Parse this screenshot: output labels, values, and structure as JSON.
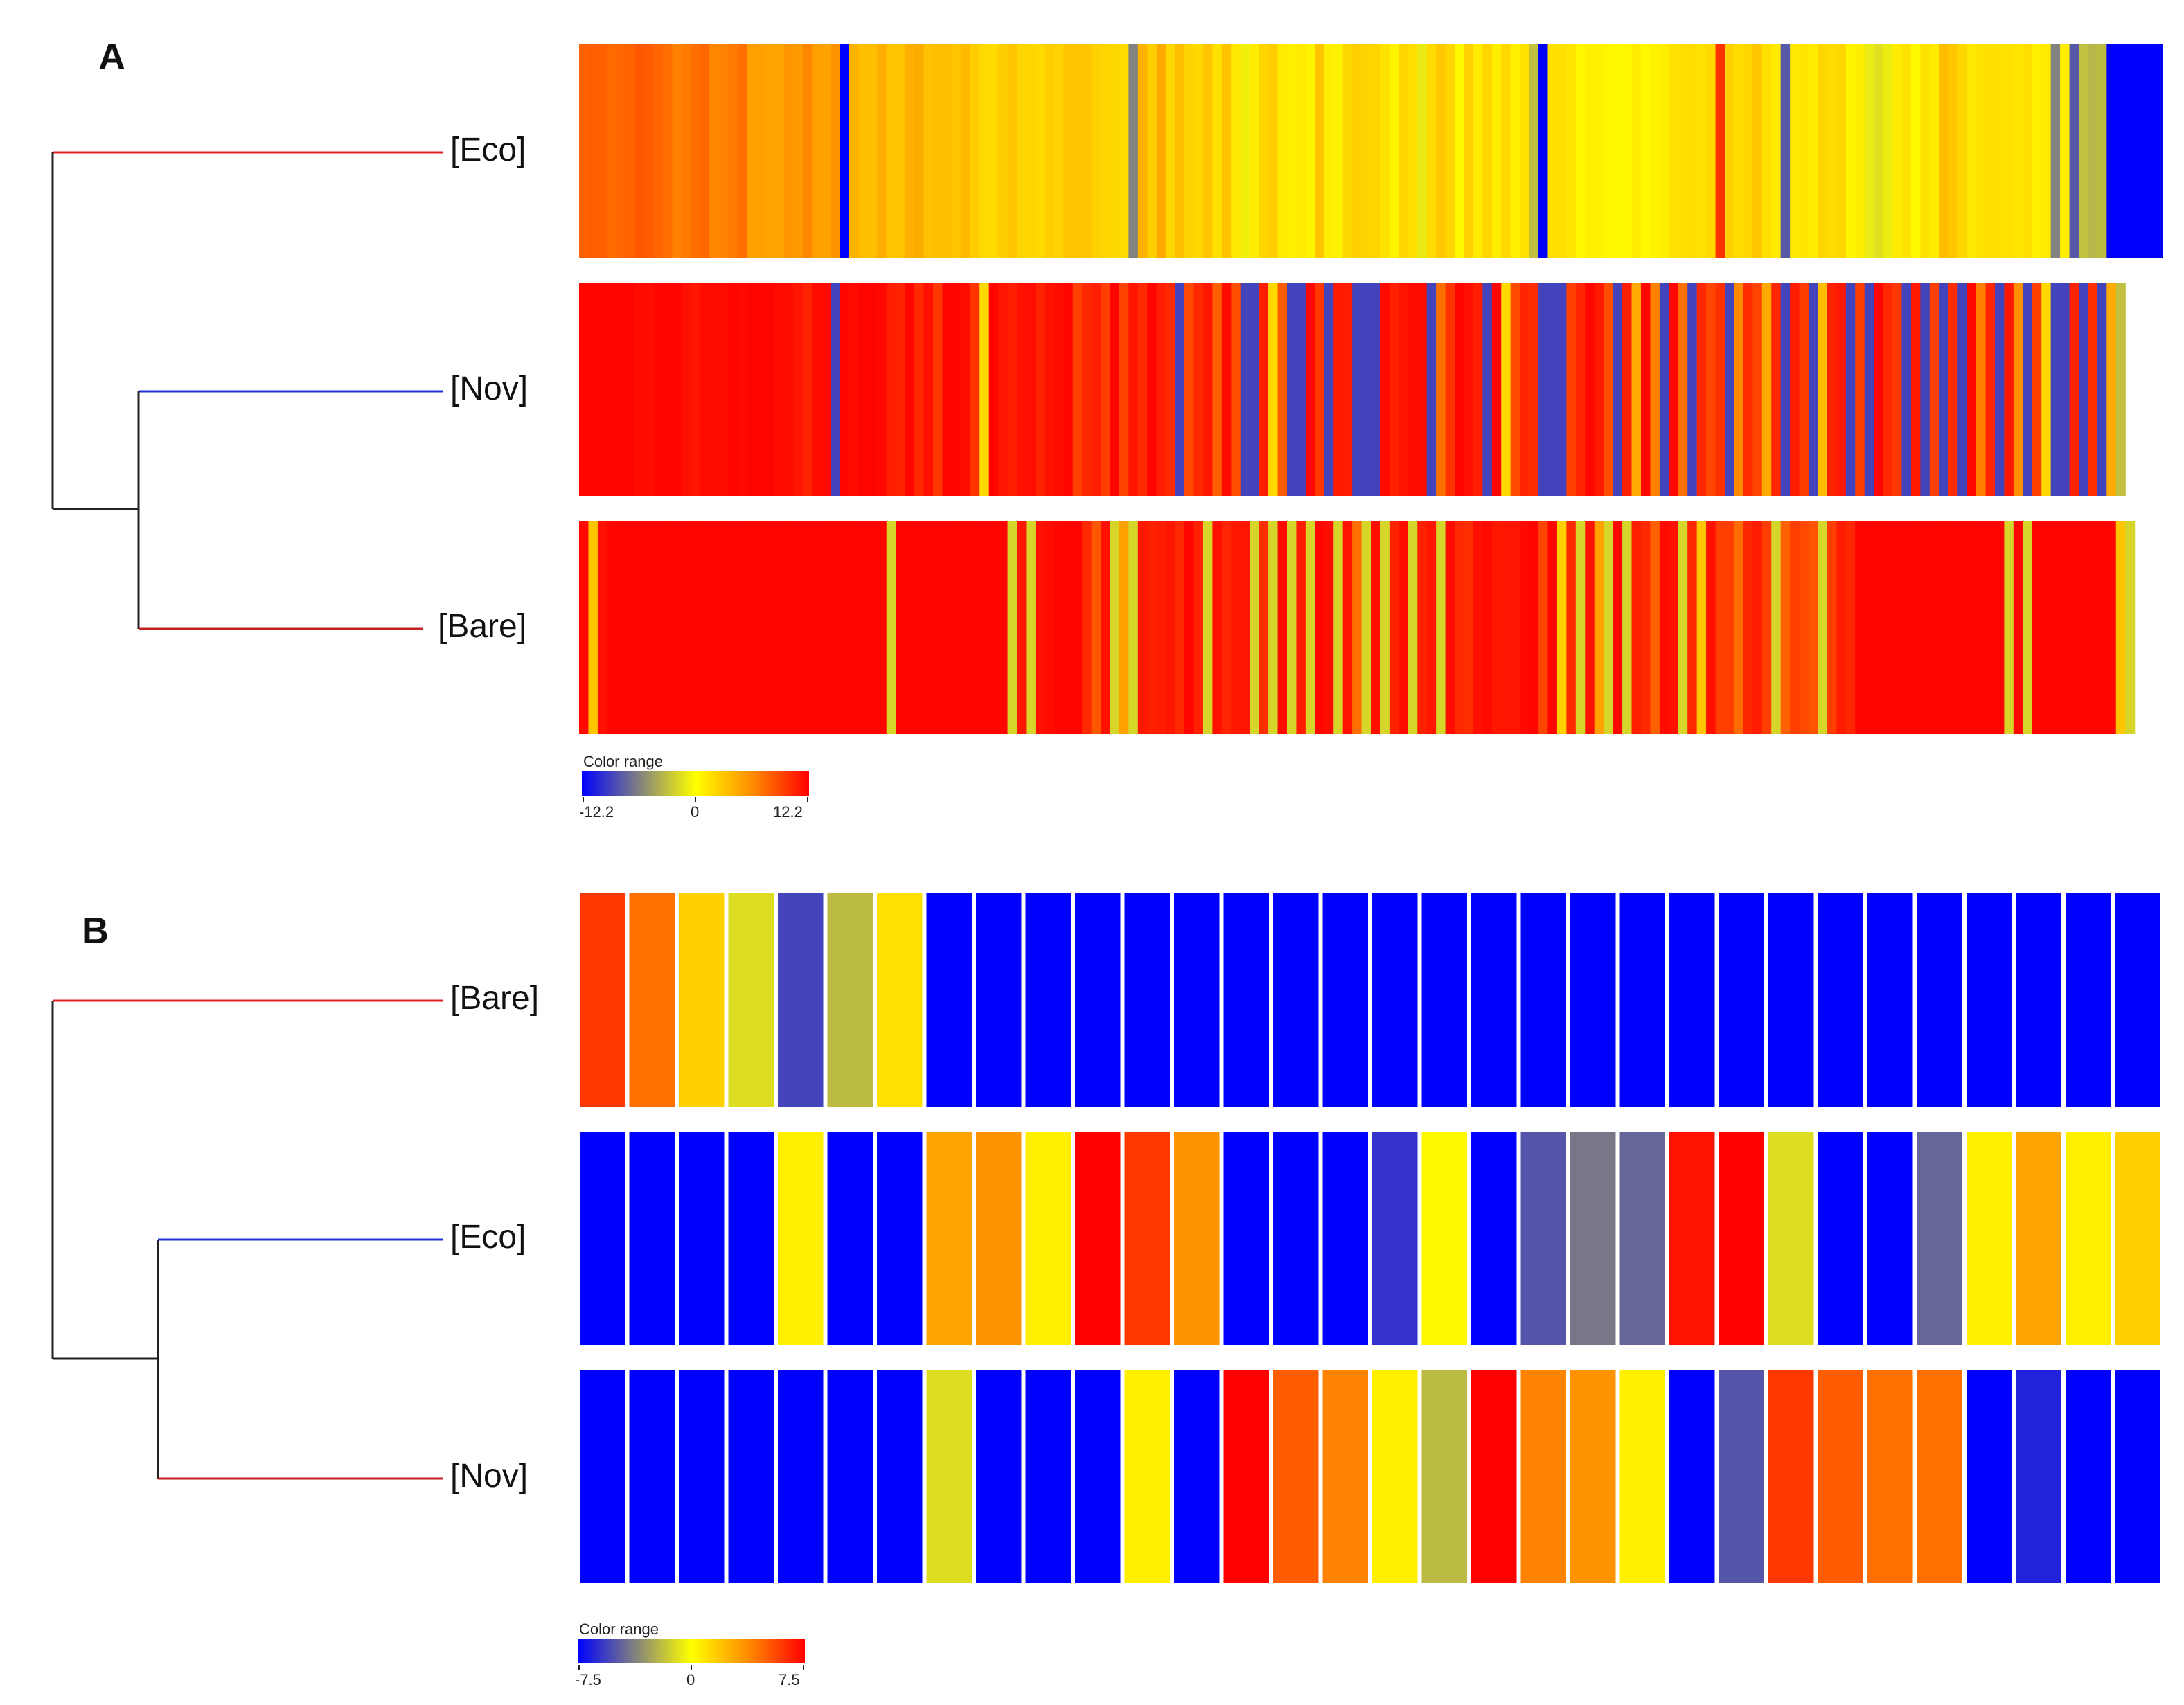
{
  "chart_data": [
    {
      "type": "heatmap",
      "panel_label": "A",
      "rows": [
        "[Eco]",
        "[Nov]",
        "[Bare]"
      ],
      "tree": {
        "root": [
          "[Eco]",
          [
            "[Nov]",
            "[Bare]"
          ]
        ],
        "branch_colors": {
          "[Eco]": "#e02020",
          "[Nov]": "#2030d0",
          "[Bare]": "#c02020"
        }
      },
      "column_count": 166,
      "values": [
        [
          8.0,
          8.1,
          8.0,
          7.6,
          7.8,
          7.9,
          8.4,
          8.2,
          7.8,
          7.4,
          6.5,
          6.9,
          7.4,
          7.7,
          6.3,
          6.5,
          6.8,
          7.3,
          5.1,
          5.1,
          4.9,
          4.9,
          5.6,
          5.3,
          6.3,
          5.1,
          4.9,
          5.7,
          -12.2,
          4.1,
          3.4,
          3.4,
          4.3,
          3.1,
          3.2,
          4.2,
          4.4,
          3.3,
          3.4,
          3.4,
          3.1,
          3.7,
          2.7,
          2.0,
          1.9,
          2.6,
          3.1,
          2.2,
          2.2,
          2.0,
          2.6,
          2.3,
          3.2,
          3.2,
          3.0,
          2.4,
          2.2,
          2.1,
          1.9,
          -6.0,
          4.1,
          2.6,
          4.5,
          2.1,
          3.5,
          2.3,
          2.0,
          3.1,
          1.6,
          3.2,
          1.2,
          -0.7,
          1.0,
          2.2,
          2.6,
          1.1,
          0.8,
          1.1,
          0.6,
          3.0,
          0.9,
          0.7,
          2.1,
          2.5,
          2.3,
          2.2,
          1.5,
          0.6,
          2.2,
          1.7,
          -1.0,
          1.9,
          2.9,
          2.2,
          0.3,
          2.4,
          1.0,
          2.2,
          0.9,
          2.0,
          0.8,
          1.6,
          -3.0,
          -12.2,
          1.6,
          1.7,
          1.3,
          0.5,
          0.8,
          0.7,
          0.5,
          0.3,
          0.4,
          1.0,
          0.3,
          0.7,
          0.9,
          1.6,
          1.7,
          1.8,
          1.6,
          2.0,
          10.0,
          2.5,
          1.8,
          2.2,
          3.0,
          1.7,
          1.1,
          -8.0,
          1.2,
          1.3,
          1.0,
          2.2,
          1.9,
          2.2,
          0.6,
          0.9,
          -1.0,
          -1.5,
          -0.9,
          1.0,
          1.5,
          0.3,
          1.5,
          1.0,
          3.5,
          3.0,
          2.2,
          1.2,
          1.5,
          1.7,
          1.6,
          1.6,
          1.4,
          1.7,
          0.8,
          1.1,
          -6.0,
          1.0,
          -8.0,
          -3.0,
          -3.5,
          -3.2,
          -12.2,
          -12.2,
          -12.2,
          -12.2,
          -12.2,
          -12.2
        ],
        [
          12.0,
          12.0,
          12.0,
          12.0,
          12.0,
          12.0,
          11.7,
          11.6,
          11.9,
          12.0,
          12.0,
          11.5,
          11.3,
          11.6,
          11.6,
          11.6,
          12.0,
          11.8,
          12.0,
          12.0,
          12.0,
          11.7,
          11.6,
          11.3,
          10.7,
          11.7,
          11.8,
          -9.0,
          11.9,
          11.7,
          12.0,
          12.0,
          11.8,
          10.9,
          10.7,
          11.9,
          10.4,
          11.5,
          9.8,
          12.0,
          11.9,
          11.6,
          9.9,
          2.0,
          11.9,
          11.3,
          10.9,
          11.5,
          11.6,
          10.7,
          11.4,
          11.6,
          12.0,
          9.5,
          10.5,
          10.9,
          9.5,
          12.0,
          9.3,
          11.3,
          10.4,
          12.0,
          10.9,
          10.4,
          -9.0,
          9.0,
          10.5,
          11.2,
          8.1,
          11.7,
          8.8,
          -9.0,
          -9.0,
          10.9,
          2.0,
          8.2,
          -9.0,
          -9.0,
          11.8,
          9.8,
          -9.0,
          11.1,
          11.0,
          -9.0,
          -9.0,
          -9.0,
          11.7,
          10.8,
          11.4,
          11.6,
          11.6,
          -9.0,
          7.4,
          9.9,
          12.0,
          11.5,
          10.9,
          -9.0,
          12.0,
          2.0,
          9.0,
          10.6,
          10.3,
          -9.0,
          -9.0,
          -9.0,
          9.5,
          10.6,
          11.9,
          11.1,
          8.8,
          -9.0,
          10.8,
          4.5,
          11.9,
          6.6,
          -9.0,
          11.9,
          7.3,
          -9.0,
          10.4,
          9.2,
          10.1,
          -9.0,
          6.2,
          10.3,
          9.3,
          4.5,
          10.5,
          -9.0,
          11.0,
          9.6,
          -9.0,
          3.5,
          10.7,
          11.1,
          -9.0,
          9.6,
          -9.0,
          12.0,
          10.5,
          9.8,
          -9.0,
          11.1,
          -9.0,
          9.4,
          -9.0,
          10.3,
          -9.0,
          11.8,
          6.6,
          10.6,
          -9.0,
          11.1,
          5.9,
          -9.0,
          9.4,
          2.0,
          -9.0,
          -9.0,
          10.7,
          -9.0,
          10.2,
          -9.0,
          4.5,
          -3.0
        ],
        [
          11.8,
          3.0,
          11.5,
          11.9,
          12.0,
          12.0,
          12.0,
          12.0,
          12.0,
          12.0,
          12.0,
          12.0,
          12.0,
          12.0,
          12.0,
          12.0,
          12.0,
          12.0,
          12.0,
          12.0,
          12.0,
          12.0,
          12.0,
          12.0,
          12.0,
          12.0,
          12.0,
          12.0,
          12.0,
          12.0,
          12.0,
          12.0,
          12.0,
          -2.0,
          12.0,
          12.0,
          12.0,
          12.0,
          12.0,
          12.0,
          12.0,
          12.0,
          12.0,
          12.0,
          12.0,
          11.9,
          -2.0,
          11.3,
          -2.0,
          11.5,
          11.7,
          11.9,
          12.0,
          12.0,
          10.4,
          8.4,
          11.5,
          -2.0,
          5.0,
          -2.0,
          11.2,
          10.8,
          11.0,
          11.3,
          10.4,
          11.9,
          10.8,
          -2.0,
          11.5,
          10.6,
          11.2,
          11.3,
          -2.0,
          10.2,
          -2.0,
          11.8,
          -2.0,
          10.9,
          -2.0,
          11.9,
          11.6,
          -2.0,
          11.4,
          7.4,
          -2.0,
          11.6,
          -2.0,
          10.7,
          11.6,
          -2.0,
          10.8,
          11.3,
          -2.0,
          11.7,
          10.4,
          10.2,
          11.5,
          11.8,
          11.2,
          11.3,
          11.3,
          11.8,
          12.0,
          9.3,
          12.0,
          2.5,
          10.4,
          -2.0,
          11.4,
          5.0,
          -2.0,
          11.9,
          -2.0,
          10.9,
          10.4,
          8.0,
          11.7,
          11.5,
          -2.0,
          10.4,
          3.0,
          11.5,
          9.5,
          9.5,
          7.5,
          10.5,
          11.0,
          9.5,
          -2.0,
          8.0,
          9.5,
          9.0,
          8.5,
          -2.0,
          9.5,
          11.0,
          10.5,
          12.0,
          12.0,
          12.0,
          12.0,
          12.0,
          12.0,
          12.0,
          12.0,
          12.0,
          12.0,
          12.0,
          12.0,
          12.0,
          12.0,
          12.0,
          12.0,
          -2.0,
          12.0,
          -2.0,
          12.0,
          12.0,
          12.0,
          12.0,
          12.0,
          12.0,
          12.0,
          12.0,
          12.0,
          3.0,
          -2.0
        ]
      ],
      "color_range": {
        "title": "Color range",
        "min": -12.2,
        "mid": 0,
        "max": 12.2,
        "tick_labels": [
          "-12.2",
          "0",
          "12.2"
        ]
      },
      "colormap": [
        "#0000ff",
        "#808080",
        "#ffff00",
        "#ff8c00",
        "#ff0000"
      ]
    },
    {
      "type": "heatmap",
      "panel_label": "B",
      "rows": [
        "[Bare]",
        "[Eco]",
        "[Nov]"
      ],
      "tree": {
        "root": [
          "[Bare]",
          [
            "[Eco]",
            "[Nov]"
          ]
        ],
        "branch_colors": {
          "[Bare]": "#e02020",
          "[Eco]": "#2030d0",
          "[Nov]": "#c02020"
        }
      },
      "column_count": 32,
      "values": [
        [
          6.0,
          4.5,
          1.5,
          -1.0,
          -5.5,
          -2.0,
          1.0,
          -7.5,
          -7.5,
          -7.5,
          -7.5,
          -7.5,
          -7.5,
          -7.5,
          -7.5,
          -7.5,
          -7.5,
          -7.5,
          -7.5,
          -7.5,
          -7.5,
          -7.5,
          -7.5,
          -7.5,
          -7.5,
          -7.5,
          -7.5,
          -7.5,
          -7.5,
          -7.5,
          -7.5,
          -7.5
        ],
        [
          -7.5,
          -7.5,
          -7.5,
          -7.5,
          0.5,
          -7.5,
          -7.5,
          3.0,
          3.5,
          0.5,
          7.5,
          6.0,
          3.5,
          -7.5,
          -7.5,
          -7.5,
          -6.0,
          0.2,
          -7.5,
          -5.0,
          -4.0,
          -4.5,
          7.0,
          7.5,
          -1.0,
          -7.5,
          -7.5,
          -4.5,
          0.5,
          3.0,
          0.5,
          1.5
        ],
        [
          -7.5,
          -7.5,
          -7.5,
          -7.5,
          -7.5,
          -7.5,
          -7.5,
          -1.0,
          -7.5,
          -7.5,
          -7.5,
          0.5,
          -7.5,
          7.5,
          5.0,
          4.0,
          0.5,
          -2.0,
          7.5,
          4.0,
          3.5,
          0.5,
          -7.5,
          -5.0,
          6.0,
          5.0,
          4.5,
          4.5,
          -7.5,
          -6.5,
          -7.5,
          -7.5
        ]
      ],
      "color_range": {
        "title": "Color range",
        "min": -7.5,
        "mid": 0,
        "max": 7.5,
        "tick_labels": [
          "-7.5",
          "0",
          "7.5"
        ]
      },
      "colormap": [
        "#0000ff",
        "#808080",
        "#ffff00",
        "#ff8c00",
        "#ff0000"
      ]
    }
  ]
}
